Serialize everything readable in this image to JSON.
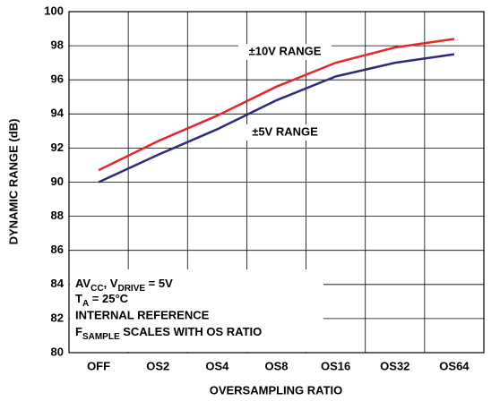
{
  "chart_data": {
    "type": "line",
    "categories": [
      "OFF",
      "OS2",
      "OS4",
      "OS8",
      "OS16",
      "OS32",
      "OS64"
    ],
    "series": [
      {
        "name": "±10V RANGE",
        "color": "#e8262a",
        "values": [
          90.7,
          92.4,
          93.9,
          95.6,
          97.0,
          97.9,
          98.4
        ]
      },
      {
        "name": "±5V RANGE",
        "color": "#2b2c7c",
        "values": [
          90.0,
          91.6,
          93.1,
          94.8,
          96.2,
          97.0,
          97.5
        ]
      }
    ],
    "ylim": [
      80,
      100
    ],
    "yticks": [
      80,
      82,
      84,
      86,
      88,
      90,
      92,
      94,
      96,
      98,
      100
    ],
    "xlabel": "OVERSAMPLING RATIO",
    "ylabel": "DYNAMIC RANGE (dB)",
    "grid": true,
    "notes": [
      [
        "AV",
        "CC",
        ", V",
        "DRIVE",
        " = 5V"
      ],
      [
        "T",
        "A",
        " = 25°C"
      ],
      [
        "INTERNAL REFERENCE"
      ],
      [
        "F",
        "SAMPLE",
        " SCALES WITH OS RATIO"
      ]
    ]
  }
}
